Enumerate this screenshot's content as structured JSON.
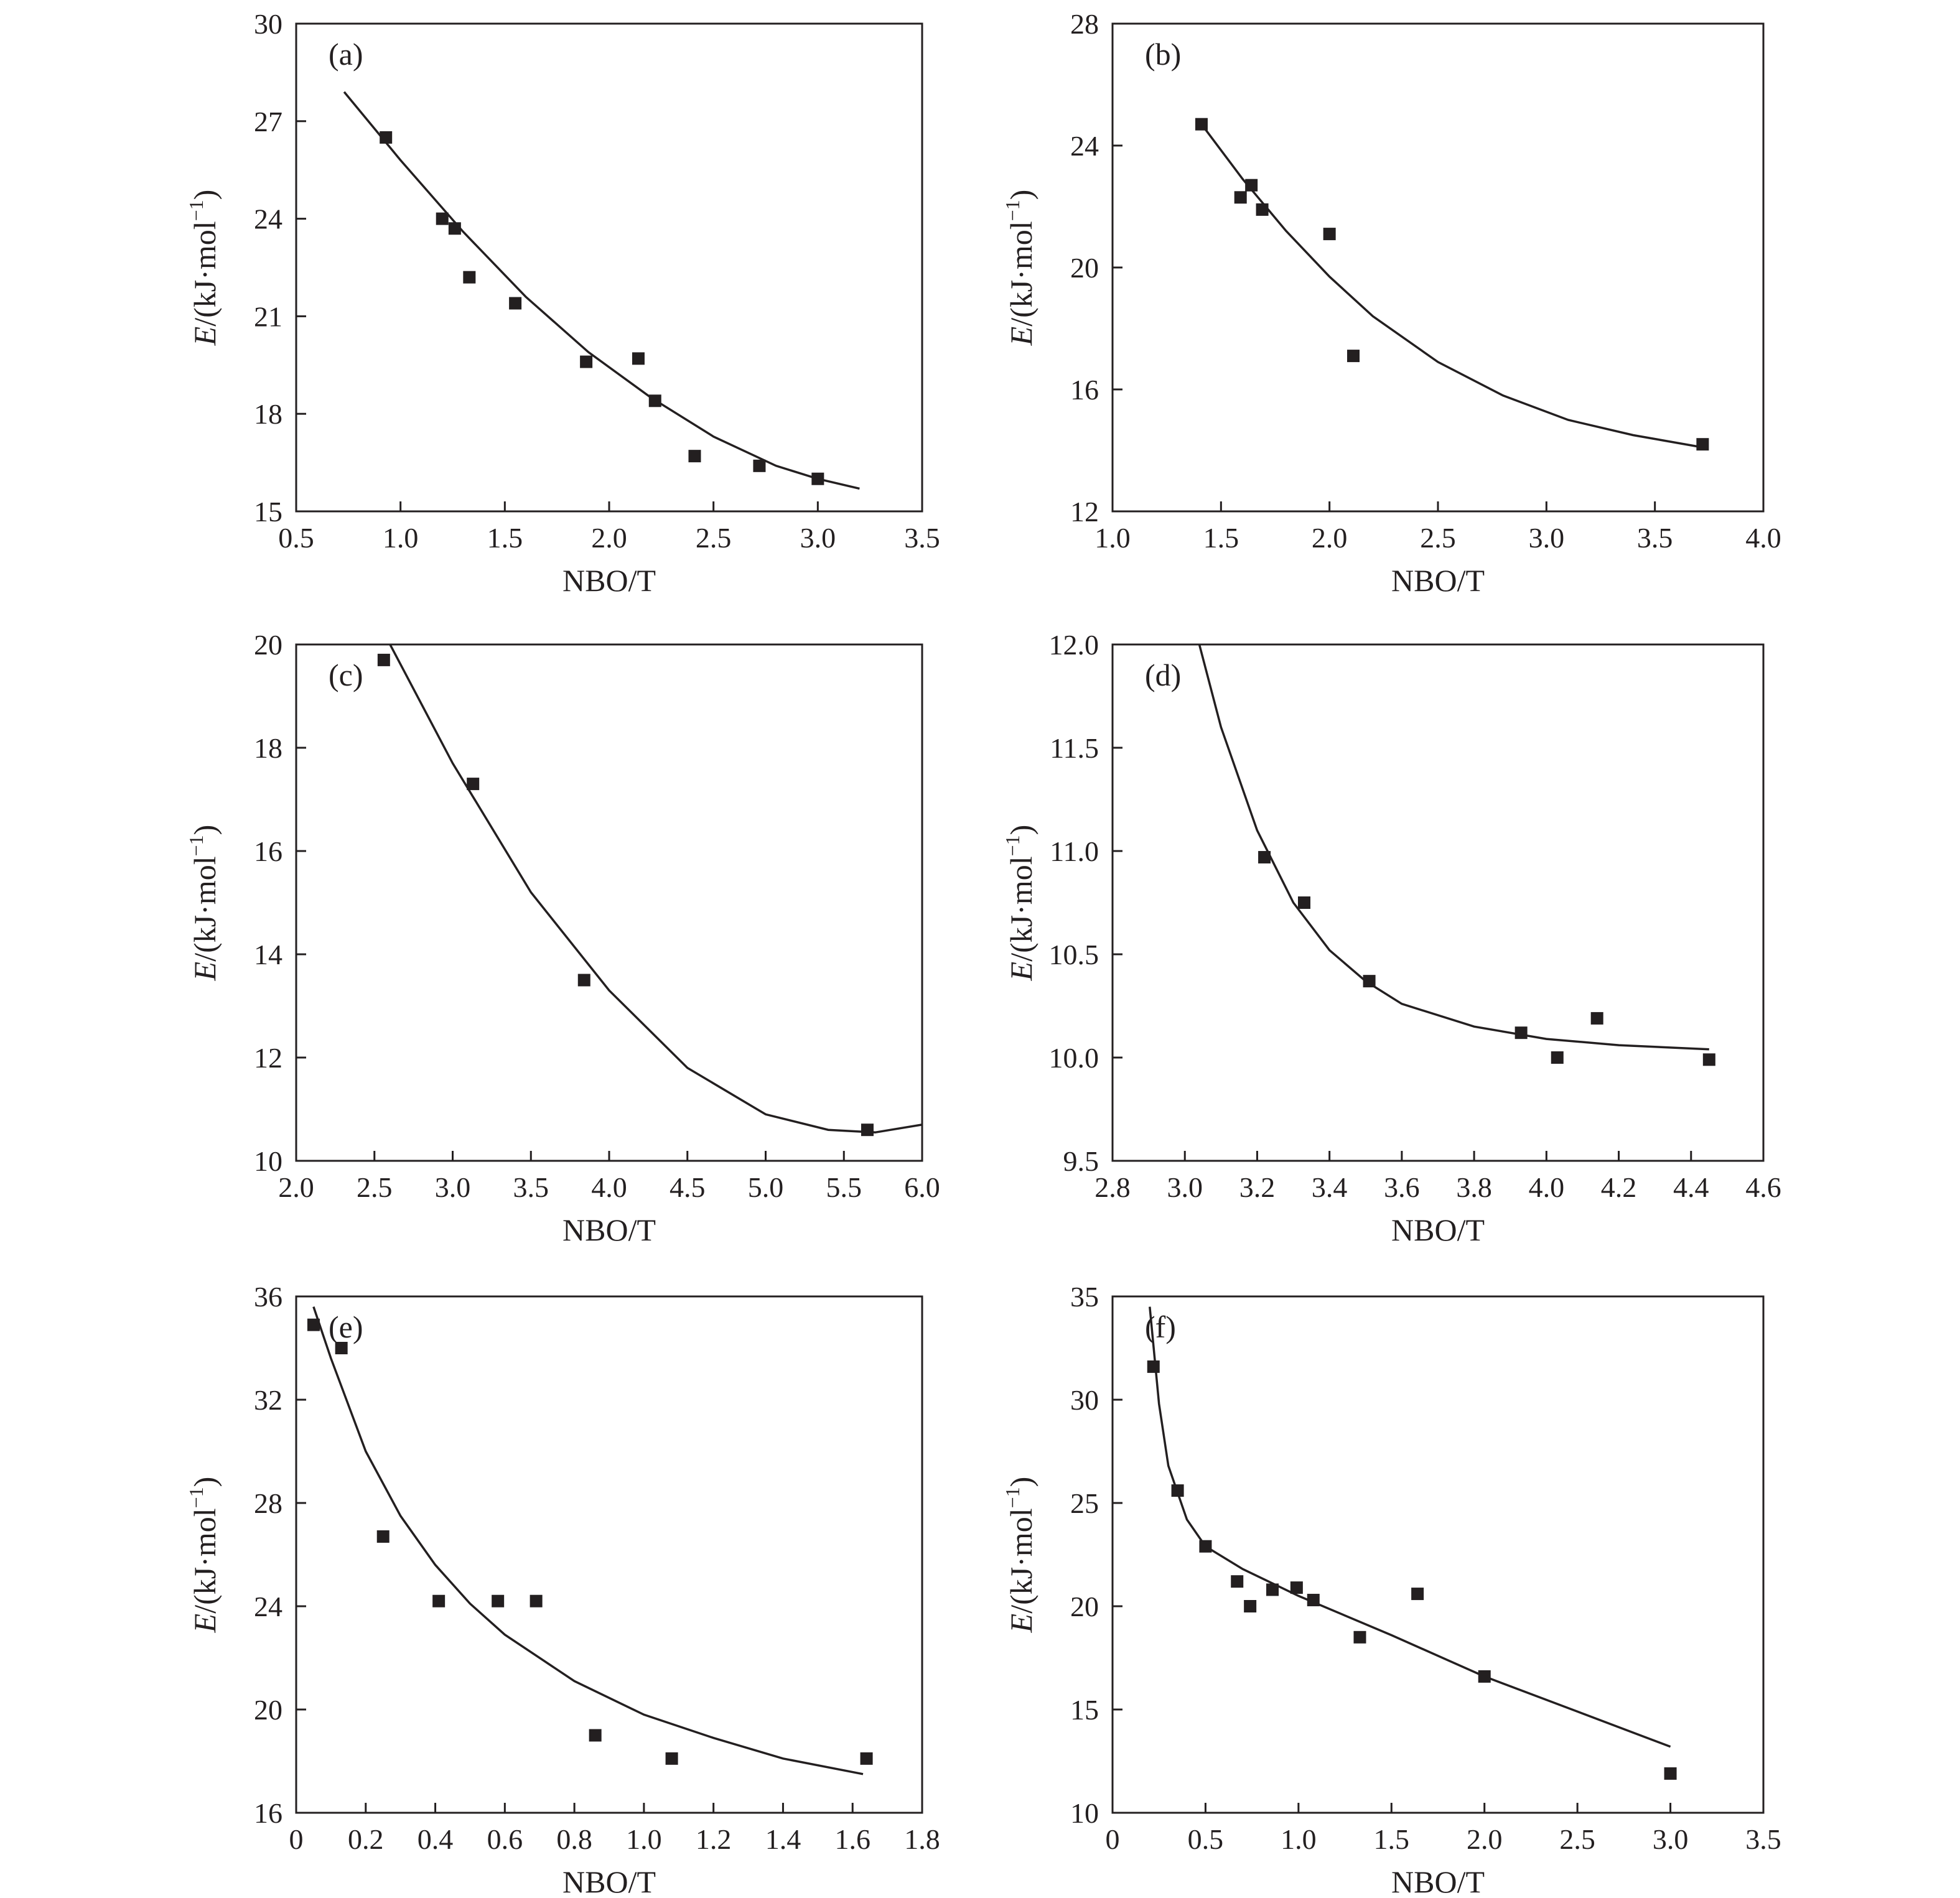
{
  "figure": {
    "panel_labels": [
      "(a)",
      "(b)",
      "(c)",
      "(d)",
      "(e)",
      "(f)"
    ],
    "ylabel_italic": "E",
    "ylabel_unit": "/(kJ·mol",
    "ylabel_sup": "−1",
    "ylabel_close": ")",
    "xlabel": "NBO/T",
    "marker_color": "#231f20",
    "line_color": "#231f20"
  },
  "chart_data": [
    {
      "type": "scatter",
      "panel": "(a)",
      "xlabel": "NBO/T",
      "ylabel": "E/(kJ·mol−1)",
      "xlim": [
        0.5,
        3.5
      ],
      "ylim": [
        15,
        30
      ],
      "xticks": [
        "0.5",
        "1.0",
        "1.5",
        "2.0",
        "2.5",
        "3.0",
        "3.5"
      ],
      "yticks": [
        "15",
        "18",
        "21",
        "24",
        "27",
        "30"
      ],
      "points": [
        [
          0.93,
          26.5
        ],
        [
          1.2,
          24.0
        ],
        [
          1.26,
          23.7
        ],
        [
          1.33,
          22.2
        ],
        [
          1.55,
          21.4
        ],
        [
          1.89,
          19.6
        ],
        [
          2.14,
          19.7
        ],
        [
          2.22,
          18.4
        ],
        [
          2.41,
          16.7
        ],
        [
          2.72,
          16.4
        ],
        [
          3.0,
          16.0
        ]
      ],
      "fit": [
        [
          0.73,
          27.9
        ],
        [
          1.0,
          25.8
        ],
        [
          1.3,
          23.6
        ],
        [
          1.6,
          21.6
        ],
        [
          1.9,
          19.9
        ],
        [
          2.2,
          18.5
        ],
        [
          2.5,
          17.3
        ],
        [
          2.8,
          16.4
        ],
        [
          3.0,
          16.0
        ],
        [
          3.2,
          15.7
        ]
      ],
      "grid": false,
      "legend": "none"
    },
    {
      "type": "scatter",
      "panel": "(b)",
      "xlabel": "NBO/T",
      "ylabel": "E/(kJ·mol−1)",
      "xlim": [
        1.0,
        4.0
      ],
      "ylim": [
        12,
        28
      ],
      "xticks": [
        "1.0",
        "1.5",
        "2.0",
        "2.5",
        "3.0",
        "3.5",
        "4.0"
      ],
      "yticks": [
        "12",
        "16",
        "20",
        "24",
        "28"
      ],
      "points": [
        [
          1.41,
          24.7
        ],
        [
          1.59,
          22.3
        ],
        [
          1.64,
          22.7
        ],
        [
          1.69,
          21.9
        ],
        [
          2.0,
          21.1
        ],
        [
          2.11,
          17.1
        ],
        [
          3.72,
          14.2
        ]
      ],
      "fit": [
        [
          1.41,
          24.7
        ],
        [
          1.6,
          22.9
        ],
        [
          1.8,
          21.2
        ],
        [
          2.0,
          19.7
        ],
        [
          2.2,
          18.4
        ],
        [
          2.5,
          16.9
        ],
        [
          2.8,
          15.8
        ],
        [
          3.1,
          15.0
        ],
        [
          3.4,
          14.5
        ],
        [
          3.72,
          14.1
        ]
      ],
      "grid": false,
      "legend": "none"
    },
    {
      "type": "scatter",
      "panel": "(c)",
      "xlabel": "NBO/T",
      "ylabel": "E/(kJ·mol−1)",
      "xlim": [
        2.0,
        6.0
      ],
      "ylim": [
        10,
        20
      ],
      "xticks": [
        "2.0",
        "2.5",
        "3.0",
        "3.5",
        "4.0",
        "4.5",
        "5.0",
        "5.5",
        "6.0"
      ],
      "yticks": [
        "10",
        "12",
        "14",
        "16",
        "18",
        "20"
      ],
      "points": [
        [
          2.56,
          19.7
        ],
        [
          3.13,
          17.3
        ],
        [
          3.84,
          13.5
        ],
        [
          5.65,
          10.6
        ]
      ],
      "fit": [
        [
          2.6,
          20.0
        ],
        [
          3.0,
          17.7
        ],
        [
          3.5,
          15.2
        ],
        [
          4.0,
          13.3
        ],
        [
          4.5,
          11.8
        ],
        [
          5.0,
          10.9
        ],
        [
          5.4,
          10.6
        ],
        [
          5.7,
          10.55
        ],
        [
          6.0,
          10.7
        ]
      ],
      "grid": false,
      "legend": "none"
    },
    {
      "type": "scatter",
      "panel": "(d)",
      "xlabel": "NBO/T",
      "ylabel": "E/(kJ·mol−1)",
      "xlim": [
        2.8,
        4.6
      ],
      "ylim": [
        9.5,
        12.0
      ],
      "xticks": [
        "2.8",
        "3.0",
        "3.2",
        "3.4",
        "3.6",
        "3.8",
        "4.0",
        "4.2",
        "4.4",
        "4.6"
      ],
      "yticks": [
        "9.5",
        "10.0",
        "10.5",
        "11.0",
        "11.5",
        "12.0"
      ],
      "points": [
        [
          3.22,
          10.97
        ],
        [
          3.33,
          10.75
        ],
        [
          3.51,
          10.37
        ],
        [
          3.93,
          10.12
        ],
        [
          4.03,
          10.0
        ],
        [
          4.14,
          10.19
        ],
        [
          4.45,
          9.99
        ]
      ],
      "fit": [
        [
          3.04,
          12.0
        ],
        [
          3.1,
          11.6
        ],
        [
          3.2,
          11.1
        ],
        [
          3.3,
          10.75
        ],
        [
          3.4,
          10.52
        ],
        [
          3.5,
          10.37
        ],
        [
          3.6,
          10.26
        ],
        [
          3.8,
          10.15
        ],
        [
          4.0,
          10.09
        ],
        [
          4.2,
          10.06
        ],
        [
          4.45,
          10.04
        ]
      ],
      "grid": false,
      "legend": "none"
    },
    {
      "type": "scatter",
      "panel": "(e)",
      "xlabel": "NBO/T",
      "ylabel": "E/(kJ·mol−1)",
      "xlim": [
        0,
        1.8
      ],
      "ylim": [
        16,
        36
      ],
      "xticks": [
        "0",
        "0.2",
        "0.4",
        "0.6",
        "0.8",
        "1.0",
        "1.2",
        "1.4",
        "1.6",
        "1.8"
      ],
      "yticks": [
        "16",
        "20",
        "24",
        "28",
        "32",
        "36"
      ],
      "points": [
        [
          0.05,
          34.9
        ],
        [
          0.13,
          34.0
        ],
        [
          0.25,
          26.7
        ],
        [
          0.41,
          24.2
        ],
        [
          0.58,
          24.2
        ],
        [
          0.69,
          24.2
        ],
        [
          0.86,
          19.0
        ],
        [
          1.08,
          18.1
        ],
        [
          1.64,
          18.1
        ]
      ],
      "fit": [
        [
          0.05,
          35.6
        ],
        [
          0.1,
          33.6
        ],
        [
          0.2,
          30.0
        ],
        [
          0.3,
          27.5
        ],
        [
          0.4,
          25.6
        ],
        [
          0.5,
          24.1
        ],
        [
          0.6,
          22.9
        ],
        [
          0.8,
          21.1
        ],
        [
          1.0,
          19.8
        ],
        [
          1.2,
          18.9
        ],
        [
          1.4,
          18.1
        ],
        [
          1.63,
          17.5
        ]
      ],
      "grid": false,
      "legend": "none"
    },
    {
      "type": "scatter",
      "panel": "(f)",
      "xlabel": "NBO/T",
      "ylabel": "E/(kJ·mol−1)",
      "xlim": [
        0,
        3.5
      ],
      "ylim": [
        10,
        35
      ],
      "xticks": [
        "0",
        "0.5",
        "1.0",
        "1.5",
        "2.0",
        "2.5",
        "3.0",
        "3.5"
      ],
      "yticks": [
        "10",
        "15",
        "20",
        "25",
        "30",
        "35"
      ],
      "points": [
        [
          0.22,
          31.6
        ],
        [
          0.35,
          25.6
        ],
        [
          0.5,
          22.9
        ],
        [
          0.67,
          21.2
        ],
        [
          0.74,
          20.0
        ],
        [
          0.86,
          20.8
        ],
        [
          0.99,
          20.9
        ],
        [
          1.08,
          20.3
        ],
        [
          1.33,
          18.5
        ],
        [
          1.64,
          20.6
        ],
        [
          2.0,
          16.6
        ],
        [
          3.0,
          11.9
        ]
      ],
      "fit": [
        [
          0.2,
          34.5
        ],
        [
          0.25,
          29.8
        ],
        [
          0.3,
          26.8
        ],
        [
          0.4,
          24.2
        ],
        [
          0.5,
          22.9
        ],
        [
          0.7,
          21.8
        ],
        [
          1.0,
          20.5
        ],
        [
          1.5,
          18.6
        ],
        [
          2.0,
          16.6
        ],
        [
          2.5,
          14.9
        ],
        [
          3.0,
          13.2
        ]
      ],
      "grid": false,
      "legend": "none"
    }
  ]
}
